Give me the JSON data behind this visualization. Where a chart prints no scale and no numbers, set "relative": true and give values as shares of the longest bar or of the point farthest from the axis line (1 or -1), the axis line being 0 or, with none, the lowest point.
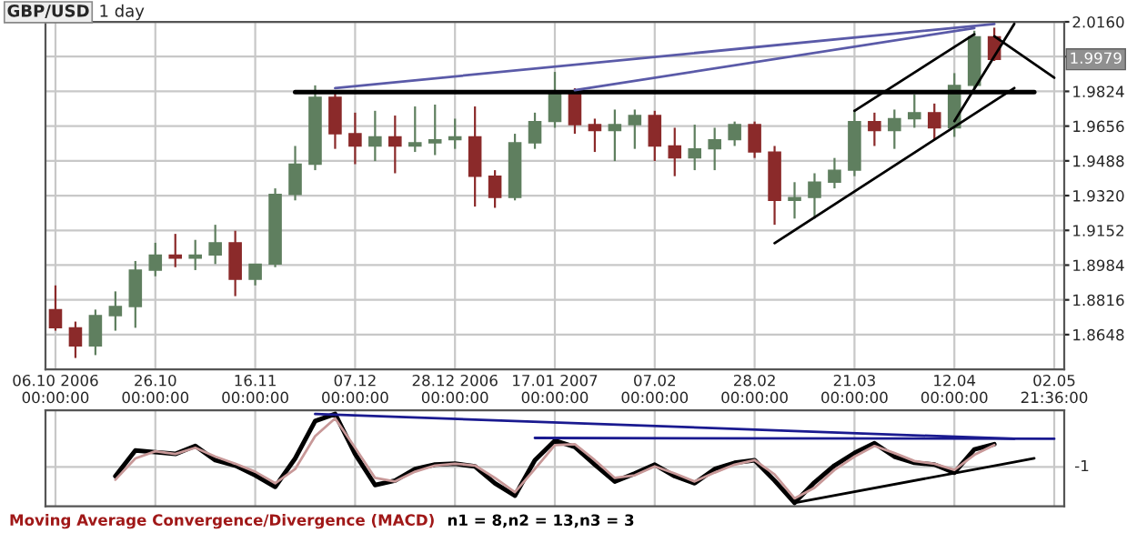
{
  "chart_data": [
    {
      "type": "candlestick",
      "title": "GBP/USD",
      "subtitle": "1 day",
      "categories": [
        "06.10 2006\n00:00:00",
        null,
        null,
        null,
        null,
        "26.10\n00:00:00",
        null,
        null,
        null,
        null,
        "16.11\n00:00:00",
        null,
        null,
        null,
        null,
        "07.12\n00:00:00",
        null,
        null,
        null,
        null,
        "28.12 2006\n00:00:00",
        null,
        null,
        null,
        null,
        "17.01 2007\n00:00:00",
        null,
        null,
        null,
        null,
        "07.02\n00:00:00",
        null,
        null,
        null,
        null,
        "28.02\n00:00:00",
        null,
        null,
        null,
        null,
        "21.03\n00:00:00",
        null,
        null,
        null,
        null,
        "12.04\n00:00:00",
        null,
        null,
        null,
        null,
        "02.05\n21:36:00"
      ],
      "ohlc": [
        [
          1.8769,
          1.8886,
          1.8667,
          1.8681
        ],
        [
          1.8681,
          1.8711,
          1.8535,
          1.8593
        ],
        [
          1.8593,
          1.8769,
          1.8549,
          1.874
        ],
        [
          1.874,
          1.8857,
          1.8667,
          1.8784
        ],
        [
          1.8784,
          1.9004,
          1.8681,
          1.896
        ],
        [
          1.896,
          1.9092,
          1.893,
          1.9033
        ],
        [
          1.9033,
          1.9135,
          1.8974,
          1.9018
        ],
        [
          1.9018,
          1.9106,
          1.896,
          1.9033
        ],
        [
          1.9033,
          1.9179,
          1.8989,
          1.9092
        ],
        [
          1.9092,
          1.915,
          1.8834,
          1.8916
        ],
        [
          1.8916,
          1.8989,
          1.8886,
          1.8989
        ],
        [
          1.8989,
          1.9355,
          1.8974,
          1.9326
        ],
        [
          1.9326,
          1.956,
          1.9297,
          1.9472
        ],
        [
          1.9472,
          1.9853,
          1.9443,
          1.9795
        ],
        [
          1.9795,
          1.983,
          1.9546,
          1.9619
        ],
        [
          1.9619,
          1.9721,
          1.9472,
          1.956
        ],
        [
          1.956,
          1.973,
          1.9487,
          1.9604
        ],
        [
          1.9604,
          1.9707,
          1.9428,
          1.956
        ],
        [
          1.956,
          1.9751,
          1.9531,
          1.9575
        ],
        [
          1.9575,
          1.976,
          1.9516,
          1.959
        ],
        [
          1.959,
          1.9692,
          1.9546,
          1.9604
        ],
        [
          1.9604,
          1.9751,
          1.9267,
          1.9414
        ],
        [
          1.9414,
          1.9443,
          1.9261,
          1.9311
        ],
        [
          1.9311,
          1.9619,
          1.9297,
          1.9575
        ],
        [
          1.9575,
          1.9721,
          1.9546,
          1.9678
        ],
        [
          1.9678,
          1.9918,
          1.9648,
          1.9824
        ],
        [
          1.9824,
          1.9839,
          1.9619,
          1.9663
        ],
        [
          1.9663,
          1.9692,
          1.9531,
          1.9634
        ],
        [
          1.9634,
          1.9736,
          1.9487,
          1.9663
        ],
        [
          1.9663,
          1.9736,
          1.9546,
          1.9707
        ],
        [
          1.9707,
          1.973,
          1.9487,
          1.956
        ],
        [
          1.956,
          1.9648,
          1.9414,
          1.9502
        ],
        [
          1.9502,
          1.9663,
          1.9443,
          1.9546
        ],
        [
          1.9546,
          1.9648,
          1.9443,
          1.959
        ],
        [
          1.959,
          1.9678,
          1.956,
          1.9663
        ],
        [
          1.9663,
          1.9678,
          1.9502,
          1.9531
        ],
        [
          1.9531,
          1.956,
          1.9179,
          1.9297
        ],
        [
          1.9297,
          1.9385,
          1.9209,
          1.9311
        ],
        [
          1.9311,
          1.9428,
          1.9209,
          1.9385
        ],
        [
          1.9385,
          1.9502,
          1.9355,
          1.9443
        ],
        [
          1.9443,
          1.9736,
          1.9414,
          1.9678
        ],
        [
          1.9678,
          1.9721,
          1.956,
          1.9634
        ],
        [
          1.9634,
          1.9736,
          1.9546,
          1.9692
        ],
        [
          1.9692,
          1.9809,
          1.9648,
          1.9721
        ],
        [
          1.9721,
          1.9765,
          1.959,
          1.9648
        ],
        [
          1.9648,
          1.9912,
          1.9604,
          1.9853
        ],
        [
          1.9853,
          2.0117,
          1.9839,
          2.0088
        ],
        [
          2.0088,
          2.0132,
          1.9971,
          1.9979
        ],
        null,
        null,
        null
      ],
      "colors": [
        "#8b2a2a",
        "#8b2a2a",
        "#5f7f5f",
        "#5f7f5f",
        "#5f7f5f",
        "#5f7f5f",
        "#8b2a2a",
        "#5f7f5f",
        "#5f7f5f",
        "#8b2a2a",
        "#5f7f5f",
        "#5f7f5f",
        "#5f7f5f",
        "#5f7f5f",
        "#8b2a2a",
        "#8b2a2a",
        "#5f7f5f",
        "#8b2a2a",
        "#5f7f5f",
        "#5f7f5f",
        "#5f7f5f",
        "#8b2a2a",
        "#8b2a2a",
        "#5f7f5f",
        "#5f7f5f",
        "#5f7f5f",
        "#8b2a2a",
        "#8b2a2a",
        "#5f7f5f",
        "#5f7f5f",
        "#8b2a2a",
        "#8b2a2a",
        "#5f7f5f",
        "#5f7f5f",
        "#5f7f5f",
        "#8b2a2a",
        "#8b2a2a",
        "#5f7f5f",
        "#5f7f5f",
        "#5f7f5f",
        "#5f7f5f",
        "#8b2a2a",
        "#5f7f5f",
        "#5f7f5f",
        "#8b2a2a",
        "#5f7f5f",
        "#5f7f5f",
        "#8b2a2a",
        null,
        null,
        null
      ],
      "series": [
        {
          "type": "line",
          "color": "#000000",
          "values": [
            null,
            null,
            null,
            null,
            null,
            null,
            null,
            null,
            null,
            null,
            null,
            null,
            1.982,
            null,
            null,
            null,
            null,
            null,
            null,
            null,
            null,
            null,
            null,
            null,
            null,
            null,
            null,
            null,
            null,
            null,
            null,
            null,
            null,
            null,
            null,
            null,
            null,
            null,
            null,
            null,
            null,
            null,
            null,
            null,
            null,
            null,
            null,
            null,
            null,
            1.982,
            null
          ]
        },
        {
          "type": "line",
          "color": "#5a5aa8",
          "values": [
            null,
            null,
            null,
            null,
            null,
            null,
            null,
            null,
            null,
            null,
            null,
            null,
            null,
            null,
            1.984,
            null,
            null,
            null,
            null,
            null,
            null,
            null,
            null,
            null,
            null,
            null,
            null,
            null,
            null,
            null,
            null,
            null,
            null,
            null,
            null,
            null,
            null,
            null,
            null,
            null,
            null,
            null,
            null,
            null,
            null,
            null,
            null,
            2.015,
            null,
            null,
            null
          ]
        },
        {
          "type": "line",
          "color": "#5a5aa8",
          "values": [
            null,
            null,
            null,
            null,
            null,
            null,
            null,
            null,
            null,
            null,
            null,
            null,
            null,
            null,
            null,
            null,
            null,
            null,
            null,
            null,
            null,
            null,
            null,
            null,
            null,
            null,
            1.983,
            null,
            null,
            null,
            null,
            null,
            null,
            null,
            null,
            null,
            null,
            null,
            null,
            null,
            null,
            null,
            null,
            null,
            null,
            null,
            2.013,
            null,
            null,
            null,
            null
          ]
        },
        {
          "type": "line",
          "color": "#000000",
          "values": [
            null,
            null,
            null,
            null,
            null,
            null,
            null,
            null,
            null,
            null,
            null,
            null,
            null,
            null,
            null,
            null,
            null,
            null,
            null,
            null,
            null,
            null,
            null,
            null,
            null,
            null,
            null,
            null,
            null,
            null,
            null,
            null,
            null,
            null,
            null,
            null,
            1.909,
            null,
            null,
            null,
            null,
            null,
            null,
            null,
            null,
            null,
            null,
            null,
            1.984,
            null,
            null
          ]
        },
        {
          "type": "line",
          "color": "#000000",
          "values": [
            null,
            null,
            null,
            null,
            null,
            null,
            null,
            null,
            null,
            null,
            null,
            null,
            null,
            null,
            null,
            null,
            null,
            null,
            null,
            null,
            null,
            null,
            null,
            null,
            null,
            null,
            null,
            null,
            null,
            null,
            null,
            null,
            null,
            null,
            null,
            null,
            null,
            null,
            null,
            null,
            1.973,
            null,
            null,
            null,
            null,
            null,
            2.01,
            null,
            null,
            null,
            null
          ]
        },
        {
          "type": "line",
          "color": "#000000",
          "values": [
            null,
            null,
            null,
            null,
            null,
            null,
            null,
            null,
            null,
            null,
            null,
            null,
            null,
            null,
            null,
            null,
            null,
            null,
            null,
            null,
            null,
            null,
            null,
            null,
            null,
            null,
            null,
            null,
            null,
            null,
            null,
            null,
            null,
            null,
            null,
            null,
            null,
            null,
            null,
            null,
            null,
            null,
            null,
            null,
            null,
            1.968,
            null,
            null,
            2.015,
            null,
            null
          ]
        },
        {
          "type": "line",
          "color": "#000000",
          "values": [
            null,
            null,
            null,
            null,
            null,
            null,
            null,
            null,
            null,
            null,
            null,
            null,
            null,
            null,
            null,
            null,
            null,
            null,
            null,
            null,
            null,
            null,
            null,
            null,
            null,
            null,
            null,
            null,
            null,
            null,
            null,
            null,
            null,
            null,
            null,
            null,
            null,
            null,
            null,
            null,
            null,
            null,
            null,
            null,
            null,
            null,
            null,
            2.009,
            null,
            null,
            1.989
          ]
        }
      ],
      "ylim": [
        1.848,
        2.016
      ],
      "yticks": [
        {
          "value": 1.8648,
          "label": "1.8648"
        },
        {
          "value": 1.8816,
          "label": "1.8816"
        },
        {
          "value": 1.8984,
          "label": "1.8984"
        },
        {
          "value": 1.9152,
          "label": "1.9152"
        },
        {
          "value": 1.932,
          "label": "1.9320"
        },
        {
          "value": 1.9488,
          "label": "1.9488"
        },
        {
          "value": 1.9656,
          "label": "1.9656"
        },
        {
          "value": 1.9824,
          "label": "1.9824"
        },
        {
          "value": 1.9992,
          "label": null
        },
        {
          "value": 2.016,
          "label": "2.0160"
        }
      ],
      "grid": true,
      "annotations": [
        {
          "text": "1.9979",
          "y": 1.9979
        }
      ]
    },
    {
      "type": "line",
      "relative": true,
      "categories": [
        null,
        null,
        null,
        null,
        null,
        null,
        null,
        null,
        null,
        null,
        null,
        null,
        null,
        null,
        null,
        null,
        null,
        null,
        null,
        null,
        null,
        null,
        null,
        null,
        null,
        null,
        null,
        null,
        null,
        null,
        null,
        null,
        null,
        null,
        null,
        null,
        null,
        null,
        null,
        null,
        null,
        null,
        null,
        null,
        null,
        null,
        null,
        null,
        null,
        null,
        null
      ],
      "series": [
        {
          "color": "#000000",
          "values": [
            null,
            null,
            null,
            0.3,
            0.59,
            0.57,
            0.55,
            0.64,
            0.48,
            0.42,
            0.31,
            0.18,
            0.5,
            0.92,
            1.0,
            0.55,
            0.2,
            0.25,
            0.38,
            0.43,
            0.44,
            0.41,
            0.22,
            0.08,
            0.48,
            0.7,
            0.63,
            0.43,
            0.24,
            0.33,
            0.43,
            0.3,
            0.22,
            0.38,
            0.45,
            0.48,
            0.25,
            0.0,
            0.23,
            0.42,
            0.56,
            0.67,
            0.52,
            0.45,
            0.43,
            0.34,
            0.6,
            0.66,
            null,
            null,
            null
          ]
        },
        {
          "color": "#c89898",
          "values": [
            null,
            null,
            null,
            0.26,
            0.5,
            0.58,
            0.55,
            0.62,
            0.52,
            0.44,
            0.35,
            0.22,
            0.38,
            0.75,
            0.95,
            0.62,
            0.28,
            0.24,
            0.35,
            0.42,
            0.44,
            0.42,
            0.28,
            0.12,
            0.38,
            0.65,
            0.66,
            0.48,
            0.28,
            0.31,
            0.41,
            0.33,
            0.24,
            0.34,
            0.43,
            0.48,
            0.32,
            0.05,
            0.17,
            0.37,
            0.52,
            0.64,
            0.56,
            0.47,
            0.44,
            0.37,
            0.54,
            0.65,
            null,
            null,
            null
          ]
        },
        {
          "color": "#1a1a90",
          "values": [
            null,
            null,
            null,
            null,
            null,
            null,
            null,
            null,
            null,
            null,
            null,
            null,
            null,
            1.0,
            null,
            null,
            null,
            null,
            null,
            null,
            null,
            null,
            null,
            null,
            null,
            null,
            null,
            null,
            null,
            null,
            null,
            null,
            null,
            null,
            null,
            null,
            null,
            null,
            null,
            null,
            null,
            null,
            null,
            null,
            null,
            null,
            null,
            null,
            0.72,
            null,
            null
          ]
        },
        {
          "color": "#1a1a90",
          "values": [
            null,
            null,
            null,
            null,
            null,
            null,
            null,
            null,
            null,
            null,
            null,
            null,
            null,
            null,
            null,
            null,
            null,
            null,
            null,
            null,
            null,
            null,
            null,
            null,
            0.73,
            null,
            null,
            null,
            null,
            null,
            null,
            null,
            null,
            null,
            null,
            null,
            null,
            null,
            null,
            null,
            null,
            null,
            null,
            null,
            null,
            null,
            null,
            null,
            null,
            null,
            0.72
          ]
        },
        {
          "color": "#000000",
          "values": [
            null,
            null,
            null,
            null,
            null,
            null,
            null,
            null,
            null,
            null,
            null,
            null,
            null,
            null,
            null,
            null,
            null,
            null,
            null,
            null,
            null,
            null,
            null,
            null,
            null,
            null,
            null,
            null,
            null,
            null,
            null,
            null,
            null,
            null,
            null,
            null,
            null,
            0.0,
            null,
            null,
            null,
            null,
            null,
            null,
            null,
            null,
            null,
            null,
            null,
            0.5,
            null
          ]
        }
      ],
      "grid": "x",
      "annotations": [
        "-1",
        "Moving Average Convergence/Divergence (MACD)",
        "n1 = 8,n2 = 13,n3 = 3"
      ]
    }
  ]
}
